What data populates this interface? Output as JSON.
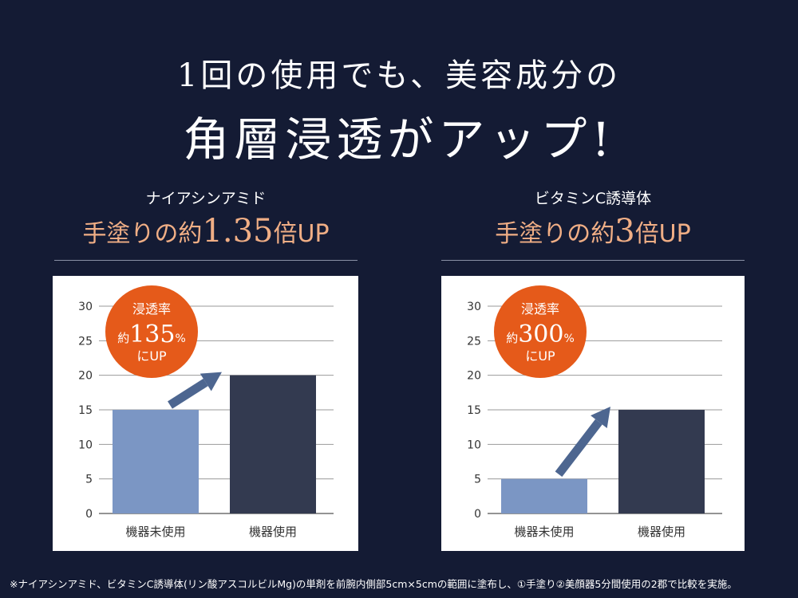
{
  "headline": {
    "line1": "1回の使用でも、美容成分の",
    "line2": "角層浸透がアップ!"
  },
  "colors": {
    "background": "#141b34",
    "accent_text": "#f0ae85",
    "badge": "#e55a1a",
    "bar_without": "#7b96c4",
    "bar_with": "#333a50",
    "arrow": "#4d6690"
  },
  "panels": [
    {
      "ingredient": "ナイアシンアミド",
      "claim_prefix": "手塗りの約",
      "claim_value": "1.35",
      "claim_suffix": "倍UP",
      "badge": {
        "line1": "浸透率",
        "prefix": "約",
        "value": "135",
        "unit": "%",
        "line3": "にUP"
      }
    },
    {
      "ingredient": "ビタミンC誘導体",
      "claim_prefix": "手塗りの約",
      "claim_value": "3",
      "claim_suffix": "倍UP",
      "badge": {
        "line1": "浸透率",
        "prefix": "約",
        "value": "300",
        "unit": "%",
        "line3": "にUP"
      }
    }
  ],
  "chart_data": [
    {
      "type": "bar",
      "categories": [
        "機器未使用",
        "機器使用"
      ],
      "values": [
        15,
        20
      ],
      "ylim": [
        0,
        30
      ],
      "yticks": [
        0,
        5,
        10,
        15,
        20,
        25,
        30
      ],
      "grid": true
    },
    {
      "type": "bar",
      "categories": [
        "機器未使用",
        "機器使用"
      ],
      "values": [
        5,
        15
      ],
      "ylim": [
        0,
        30
      ],
      "yticks": [
        0,
        5,
        10,
        15,
        20,
        25,
        30
      ],
      "grid": true
    }
  ],
  "footnote": "※ナイアシンアミド、ビタミンC誘導体(リン酸アスコルビルMg)の単剤を前腕内側部5cm×5cmの範囲に塗布し、①手塗り②美顔器5分間使用の2郡で比較を実施。"
}
